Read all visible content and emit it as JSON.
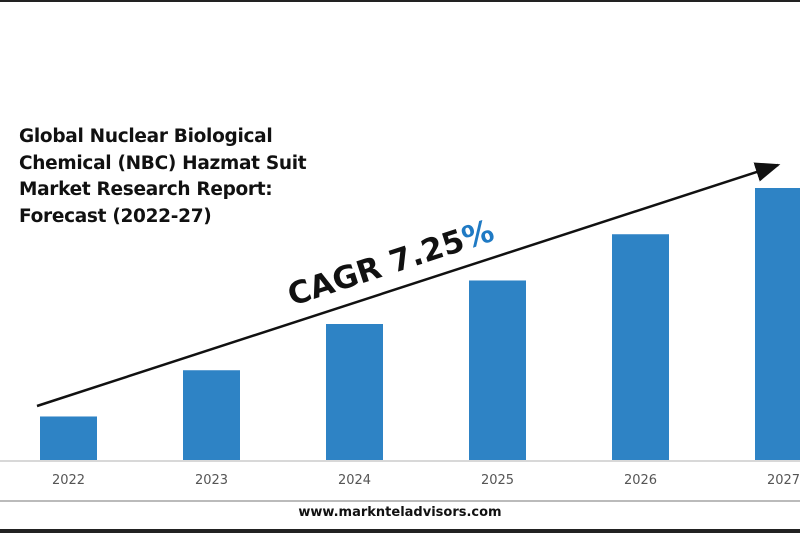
{
  "title_lines": [
    "Global Nuclear Biological",
    "Chemical (NBC) Hazmat Suit",
    "Market Research Report:",
    "Forecast (2022-27)"
  ],
  "cagr": {
    "text": "CAGR 7.25",
    "suffix": "%",
    "suffix_color": "#1f7ac4"
  },
  "footer": "www.marknteladvisors.com",
  "chart_data": {
    "type": "bar",
    "title": "Global Nuclear Biological Chemical (NBC) Hazmat Suit Market Research Report: Forecast (2022-27)",
    "categories": [
      "2022",
      "2023",
      "2024",
      "2025",
      "2026",
      "2027"
    ],
    "values": [
      16,
      33,
      50,
      66,
      83,
      100
    ],
    "values_note": "relative estimates, no axis values printed",
    "annotation": "CAGR 7.25%",
    "ylim": [
      0,
      100
    ],
    "grid": false,
    "bar_color": "#2e83c5",
    "trend_arrow": true
  }
}
